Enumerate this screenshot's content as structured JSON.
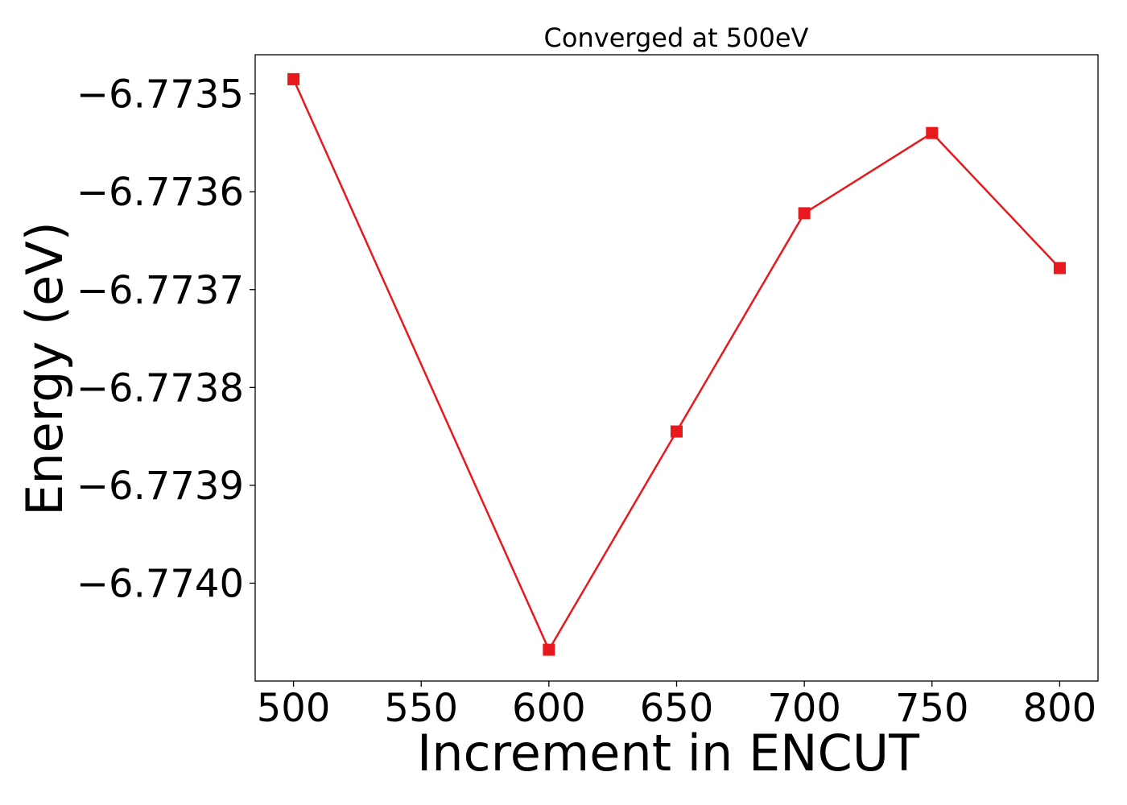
{
  "chart_data": {
    "type": "line",
    "title": "Converged at 500eV",
    "xlabel": "Increment in ENCUT",
    "ylabel": "Energy (eV)",
    "x": [
      500,
      600,
      650,
      700,
      750,
      800
    ],
    "series": [
      {
        "values": [
          -6.773485,
          -6.774068,
          -6.773845,
          -6.773622,
          -6.77354,
          -6.773678
        ],
        "color": "#e8191c",
        "marker": "square"
      }
    ],
    "xticks": [
      500,
      550,
      600,
      650,
      700,
      750,
      800
    ],
    "xtick_labels": [
      "500",
      "550",
      "600",
      "650",
      "700",
      "750",
      "800"
    ],
    "yticks": [
      -6.7735,
      -6.7736,
      -6.7737,
      -6.7738,
      -6.7739,
      -6.774
    ],
    "ytick_labels": [
      "−6.7735",
      "−6.7736",
      "−6.7737",
      "−6.7738",
      "−6.7739",
      "−6.7740"
    ],
    "xlim": [
      485,
      815
    ],
    "ylim": [
      -6.7741,
      -6.77346
    ],
    "grid": false,
    "legend": false
  }
}
